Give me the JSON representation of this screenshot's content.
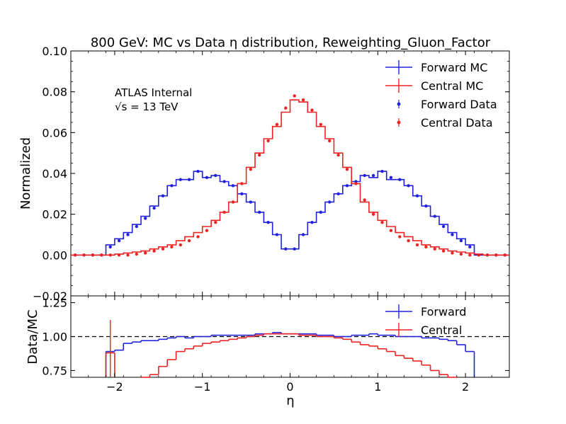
{
  "chart_data": {
    "type": "line",
    "title": "800 GeV: MC vs Data η distribution, Reweighting_Gluon_Factor",
    "annotations": [
      "ATLAS Internal",
      "√s = 13 TeV"
    ],
    "xlabel": "η",
    "xlim": [
      -2.5,
      2.5
    ],
    "x_ticks": [
      -2,
      -1,
      0,
      1,
      2
    ],
    "x_tick_labels": [
      "−2",
      "−1",
      "0",
      "1",
      "2"
    ],
    "main": {
      "ylabel": "Normalized",
      "ylim": [
        -0.02,
        0.1
      ],
      "y_ticks": [
        -0.02,
        0.0,
        0.02,
        0.04,
        0.06,
        0.08,
        0.1
      ],
      "y_tick_labels": [
        "−0.02",
        "0.00",
        "0.02",
        "0.04",
        "0.06",
        "0.08",
        "0.10"
      ],
      "legend_position": "top-right",
      "bin_edges": [
        -2.5,
        -2.4,
        -2.3,
        -2.2,
        -2.1,
        -2.0,
        -1.9,
        -1.8,
        -1.7,
        -1.6,
        -1.5,
        -1.4,
        -1.3,
        -1.2,
        -1.1,
        -1.0,
        -0.9,
        -0.8,
        -0.7,
        -0.6,
        -0.5,
        -0.4,
        -0.3,
        -0.2,
        -0.1,
        0.0,
        0.1,
        0.2,
        0.3,
        0.4,
        0.5,
        0.6,
        0.7,
        0.8,
        0.9,
        1.0,
        1.1,
        1.2,
        1.3,
        1.4,
        1.5,
        1.6,
        1.7,
        1.8,
        1.9,
        2.0,
        2.1,
        2.2,
        2.3,
        2.4,
        2.5
      ],
      "series": [
        {
          "name": "Forward MC",
          "kind": "mc",
          "color": "#2222dd",
          "values": [
            0,
            0,
            0,
            0,
            0.005,
            0.008,
            0.011,
            0.015,
            0.019,
            0.024,
            0.029,
            0.034,
            0.037,
            0.037,
            0.041,
            0.038,
            0.039,
            0.036,
            0.034,
            0.03,
            0.026,
            0.021,
            0.016,
            0.01,
            0.003,
            0.003,
            0.01,
            0.016,
            0.021,
            0.026,
            0.03,
            0.034,
            0.036,
            0.039,
            0.038,
            0.041,
            0.037,
            0.037,
            0.034,
            0.029,
            0.024,
            0.019,
            0.015,
            0.011,
            0.008,
            0.005,
            0,
            0,
            0,
            0
          ]
        },
        {
          "name": "Central MC",
          "kind": "mc",
          "color": "#ee2222",
          "values": [
            0,
            0,
            0,
            0,
            0,
            0.0005,
            0.001,
            0.0015,
            0.002,
            0.003,
            0.004,
            0.005,
            0.007,
            0.009,
            0.011,
            0.014,
            0.017,
            0.021,
            0.026,
            0.035,
            0.043,
            0.05,
            0.057,
            0.063,
            0.07,
            0.076,
            0.075,
            0.07,
            0.063,
            0.057,
            0.05,
            0.043,
            0.035,
            0.026,
            0.021,
            0.017,
            0.014,
            0.011,
            0.009,
            0.007,
            0.005,
            0.004,
            0.003,
            0.002,
            0.0015,
            0.001,
            0.0005,
            0,
            0,
            0
          ]
        },
        {
          "name": "Forward Data",
          "kind": "data",
          "color": "#2222dd",
          "values": [
            0,
            0,
            0,
            0,
            0.004,
            0.007,
            0.01,
            0.014,
            0.018,
            0.023,
            0.029,
            0.034,
            0.037,
            0.037,
            0.041,
            0.038,
            0.039,
            0.036,
            0.034,
            0.03,
            0.026,
            0.021,
            0.016,
            0.01,
            0.003,
            0.003,
            0.01,
            0.016,
            0.021,
            0.026,
            0.03,
            0.034,
            0.036,
            0.039,
            0.039,
            0.041,
            0.038,
            0.037,
            0.034,
            0.029,
            0.024,
            0.019,
            0.014,
            0.01,
            0.007,
            0.004,
            0,
            0,
            0,
            0
          ]
        },
        {
          "name": "Central Data",
          "kind": "data",
          "color": "#ee2222",
          "values": [
            0,
            0,
            0,
            0,
            0,
            0,
            0,
            0.0005,
            0.001,
            0.002,
            0.003,
            0.004,
            0.005,
            0.007,
            0.009,
            0.012,
            0.016,
            0.021,
            0.026,
            0.035,
            0.042,
            0.049,
            0.056,
            0.064,
            0.072,
            0.078,
            0.076,
            0.071,
            0.064,
            0.056,
            0.049,
            0.042,
            0.035,
            0.027,
            0.02,
            0.016,
            0.012,
            0.009,
            0.007,
            0.005,
            0.004,
            0.003,
            0.002,
            0.001,
            0.0005,
            0,
            0,
            0,
            0,
            0
          ]
        }
      ]
    },
    "ratio": {
      "ylabel": "Data/MC",
      "ylim": [
        0.7,
        1.3
      ],
      "y_ticks": [
        0.75,
        1.0,
        1.25
      ],
      "y_tick_labels": [
        "0.75",
        "1.00",
        "1.25"
      ],
      "reference_line": 1.0,
      "legend_position": "top-right",
      "series": [
        {
          "name": "Forward",
          "color": "#2222dd",
          "values": [
            null,
            null,
            null,
            null,
            0.89,
            0.9,
            0.95,
            0.96,
            0.97,
            0.97,
            0.98,
            0.99,
            1.0,
            0.99,
            1.0,
            1.0,
            1.01,
            1.01,
            1.01,
            1.01,
            1.01,
            1.02,
            1.02,
            1.03,
            1.02,
            1.02,
            1.02,
            1.02,
            1.01,
            1.01,
            1.0,
            1.0,
            1.01,
            1.01,
            1.02,
            1.01,
            1.01,
            1.0,
            1.0,
            1.0,
            0.99,
            0.99,
            0.98,
            0.97,
            0.94,
            0.89,
            null,
            null,
            null,
            null
          ]
        },
        {
          "name": "Central",
          "color": "#ee2222",
          "values": [
            null,
            null,
            null,
            null,
            0.88,
            null,
            null,
            null,
            0.7,
            0.72,
            0.78,
            0.83,
            0.89,
            0.91,
            0.93,
            0.95,
            0.96,
            0.97,
            0.98,
            0.99,
            1.0,
            1.01,
            1.02,
            1.02,
            1.02,
            1.02,
            1.01,
            1.01,
            1.0,
            1.0,
            0.99,
            0.98,
            0.96,
            0.94,
            0.93,
            0.91,
            0.89,
            0.86,
            0.84,
            0.82,
            0.79,
            0.75,
            0.72,
            0.7,
            null,
            null,
            null,
            null,
            null,
            null
          ]
        }
      ]
    }
  }
}
